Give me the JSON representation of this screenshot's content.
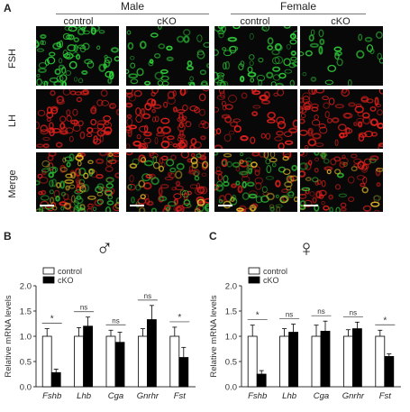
{
  "panel_a": {
    "letter": "A",
    "groups": [
      {
        "label": "Male",
        "columns": [
          "control",
          "cKO"
        ]
      },
      {
        "label": "Female",
        "columns": [
          "control",
          "cKO"
        ]
      }
    ],
    "rows": [
      "FSH",
      "LH",
      "Merge"
    ]
  },
  "panel_b": {
    "letter": "B",
    "symbol": "♂"
  },
  "panel_c": {
    "letter": "C",
    "symbol": "♀"
  },
  "colors": {
    "control_fill": "#ffffff",
    "cko_fill": "#000000",
    "fsh_green": "#2fcf3a",
    "lh_red": "#e0201c",
    "merge_yellow": "#e8c02a"
  },
  "chart_data": [
    {
      "type": "bar",
      "panel": "B",
      "ylabel": "Relative mRNA levels",
      "ylim": [
        0,
        2.0
      ],
      "yticks": [
        "0.0",
        "0.5",
        "1.0",
        "1.5",
        "2.0"
      ],
      "categories": [
        "Fshb",
        "Lhb",
        "Cga",
        "Gnrhr",
        "Fst"
      ],
      "legend": [
        "control",
        "cKO"
      ],
      "legend_position": "top-left",
      "series": [
        {
          "name": "control",
          "values": [
            1.0,
            1.0,
            1.0,
            1.0,
            1.0
          ],
          "errors": [
            0.15,
            0.17,
            0.12,
            0.15,
            0.18
          ]
        },
        {
          "name": "cKO",
          "values": [
            0.28,
            1.2,
            0.88,
            1.33,
            0.58
          ],
          "errors": [
            0.07,
            0.18,
            0.2,
            0.28,
            0.2
          ]
        }
      ],
      "significance": [
        "*",
        "ns",
        "ns",
        "ns",
        "*"
      ]
    },
    {
      "type": "bar",
      "panel": "C",
      "ylabel": "Relative mRNA levels",
      "ylim": [
        0,
        2.0
      ],
      "yticks": [
        "0.0",
        "0.5",
        "1.0",
        "1.5",
        "2.0"
      ],
      "categories": [
        "Fshb",
        "Lhb",
        "Cga",
        "Gnrhr",
        "Fst"
      ],
      "legend": [
        "control",
        "cKO"
      ],
      "legend_position": "top-left",
      "series": [
        {
          "name": "control",
          "values": [
            1.0,
            1.0,
            1.0,
            1.0,
            1.0
          ],
          "errors": [
            0.22,
            0.15,
            0.22,
            0.13,
            0.12
          ]
        },
        {
          "name": "cKO",
          "values": [
            0.25,
            1.08,
            1.1,
            1.15,
            0.6
          ],
          "errors": [
            0.07,
            0.16,
            0.2,
            0.13,
            0.05
          ]
        }
      ],
      "significance": [
        "*",
        "ns",
        "ns",
        "ns",
        "*"
      ]
    }
  ]
}
